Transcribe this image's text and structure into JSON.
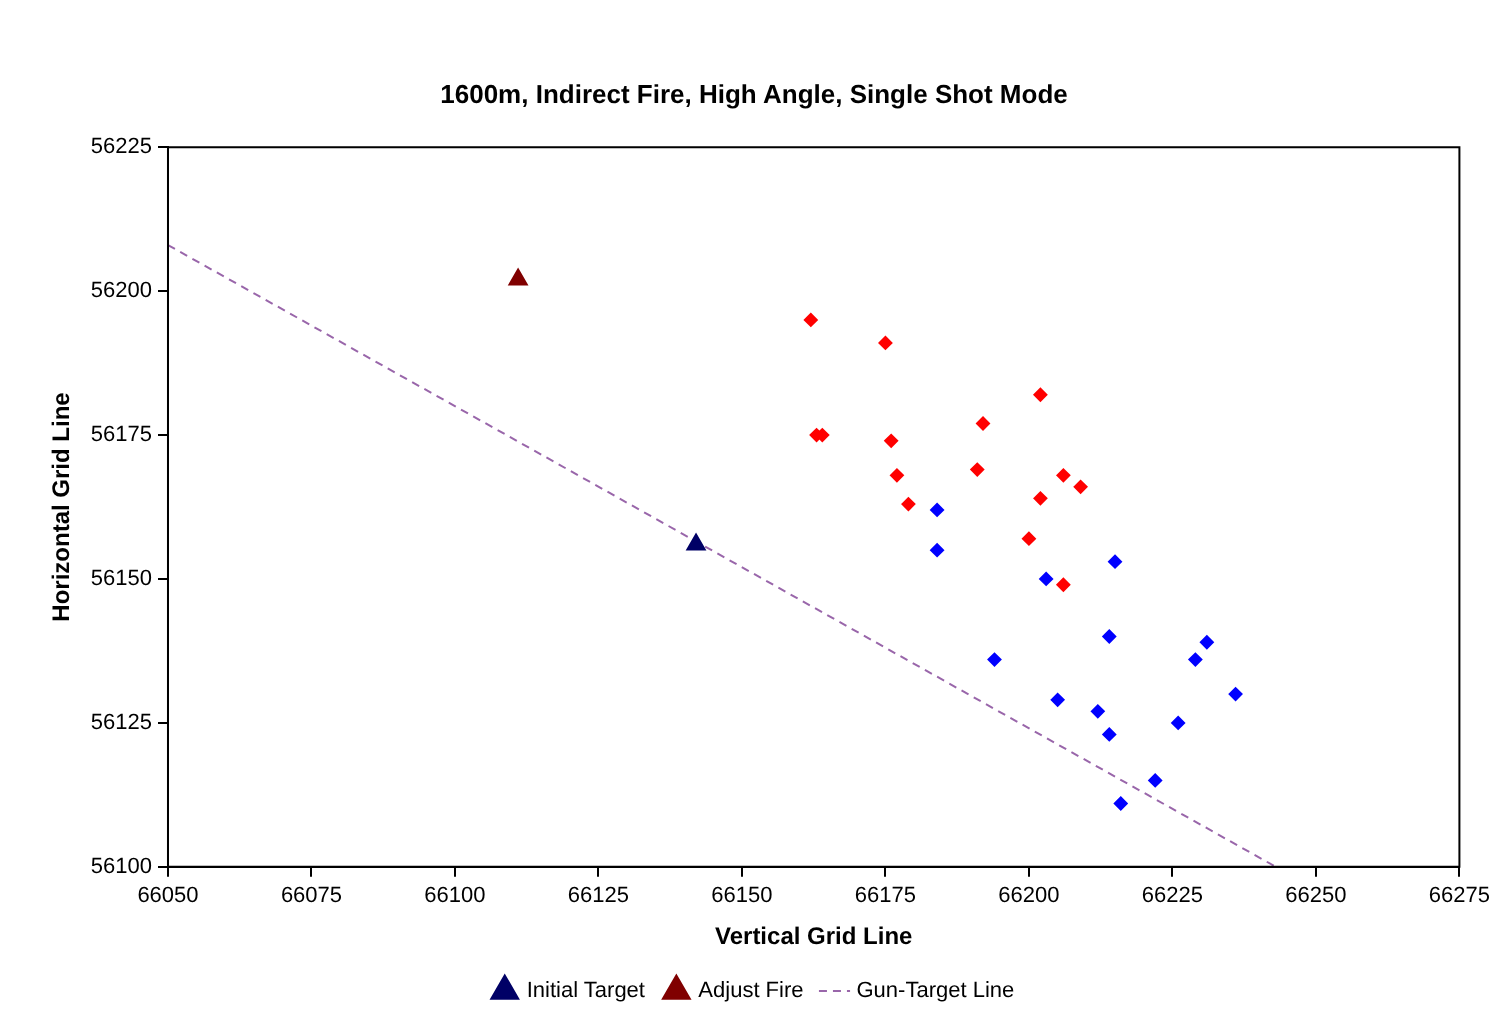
{
  "chart_data": {
    "type": "scatter",
    "title": "1600m, Indirect Fire, High Angle, Single Shot Mode",
    "xlabel": "Vertical Grid Line",
    "ylabel": "Horizontal Grid Line",
    "xlim": [
      66050,
      66275
    ],
    "xticks": [
      66050,
      66075,
      66100,
      66125,
      66150,
      66175,
      66200,
      66225,
      66250,
      66275
    ],
    "ylim": [
      56100,
      56225
    ],
    "yticks": [
      56100,
      56125,
      56150,
      56175,
      56200,
      56225
    ],
    "grid": false,
    "legend": "bottom",
    "series": [
      {
        "color": "#ff0000",
        "marker": "diamond",
        "x": [
          66162,
          66175,
          66202,
          66163,
          66164,
          66176,
          66192,
          66177,
          66191,
          66179,
          66206,
          66209,
          66202,
          66200,
          66206
        ],
        "values": [
          56195,
          56191,
          56182,
          56175,
          56175,
          56174,
          56177,
          56168,
          56169,
          56163,
          56168,
          56166,
          56164,
          56157,
          56149
        ]
      },
      {
        "color": "#0000ff",
        "marker": "diamond",
        "x": [
          66184,
          66184,
          66215,
          66203,
          66214,
          66231,
          66229,
          66194,
          66236,
          66205,
          66212,
          66214,
          66226,
          66222,
          66216
        ],
        "values": [
          56162,
          56155,
          56153,
          56150,
          56140,
          56139,
          56136,
          56136,
          56130,
          56129,
          56127,
          56123,
          56125,
          56115,
          56111
        ]
      },
      {
        "name": "Initial Target",
        "color": "#000066",
        "marker": "triangle",
        "x": [
          66142
        ],
        "values": [
          56156
        ]
      },
      {
        "name": "Adjust Fire",
        "color": "#800000",
        "marker": "triangle",
        "x": [
          66111
        ],
        "values": [
          56202
        ]
      },
      {
        "name": "Gun-Target Line",
        "type": "line",
        "color": "#9966aa",
        "marker": "none",
        "line_style": "dashed",
        "x": [
          66050,
          66243
        ],
        "values": [
          56208,
          56100
        ]
      }
    ]
  }
}
